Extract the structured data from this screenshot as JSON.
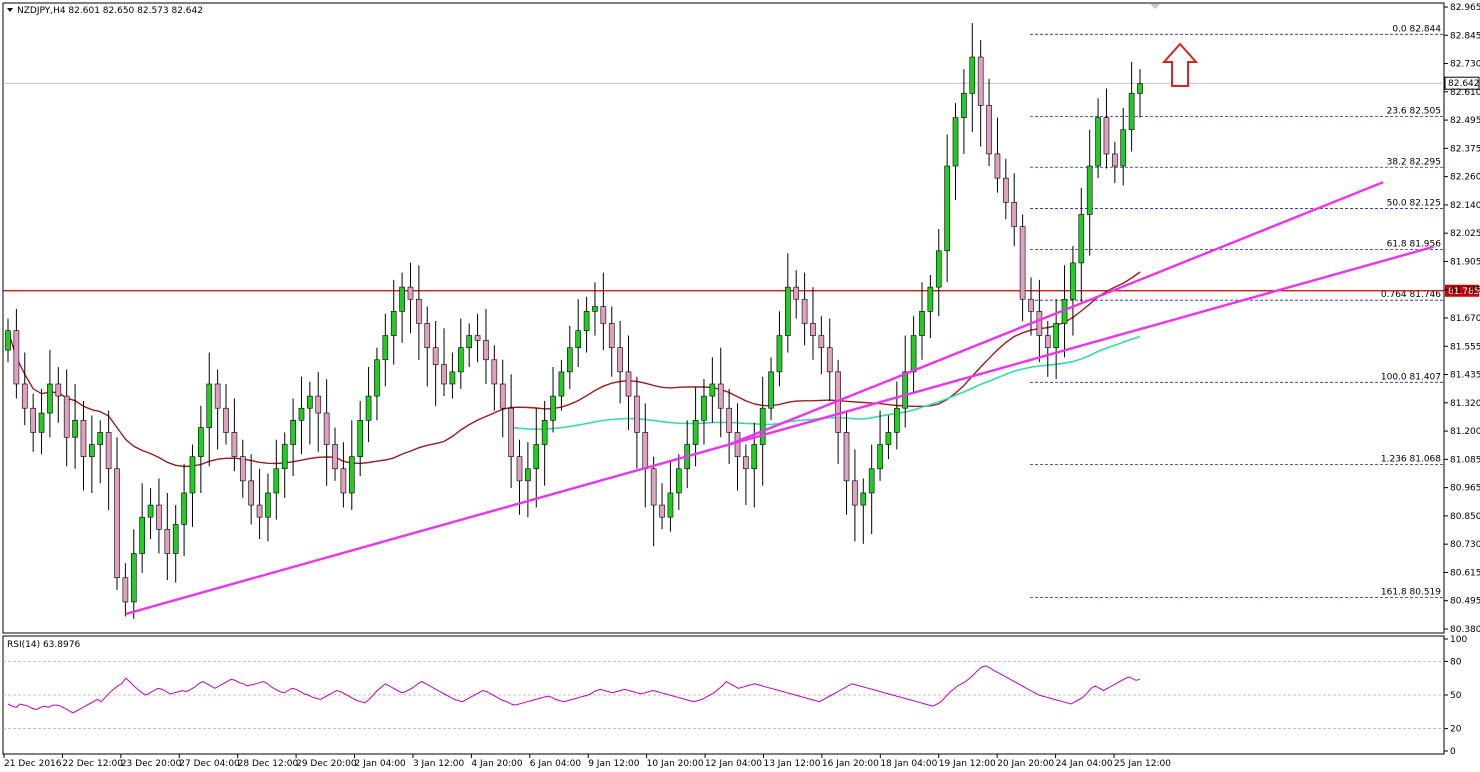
{
  "header": {
    "symbol_info": "NZDJPY,H4  82.601 82.650 82.573 82.642"
  },
  "rsi_panel": {
    "label": "RSI(14) 63.8976",
    "levels": [
      "80",
      "50",
      "20"
    ],
    "ticks": [
      "100",
      "80",
      "50",
      "20",
      "0"
    ],
    "ylim": [
      0,
      100
    ],
    "values": [
      42,
      40,
      39,
      42,
      41,
      40,
      38,
      37,
      39,
      40,
      39,
      41,
      41,
      40,
      38,
      36,
      34,
      36,
      38,
      40,
      42,
      44,
      46,
      44,
      48,
      52,
      55,
      58,
      60,
      65,
      62,
      58,
      55,
      52,
      50,
      52,
      54,
      56,
      55,
      53,
      51,
      52,
      53,
      54,
      53,
      55,
      57,
      60,
      62,
      60,
      58,
      56,
      58,
      60,
      62,
      64,
      63,
      61,
      60,
      58,
      59,
      60,
      61,
      62,
      60,
      57,
      55,
      53,
      52,
      54,
      56,
      55,
      53,
      51,
      50,
      48,
      47,
      46,
      48,
      50,
      52,
      54,
      53,
      51,
      49,
      47,
      45,
      44,
      43,
      46,
      50,
      54,
      57,
      60,
      58,
      56,
      54,
      52,
      53,
      55,
      57,
      60,
      62,
      60,
      58,
      56,
      54,
      52,
      50,
      48,
      46,
      45,
      44,
      46,
      48,
      50,
      52,
      54,
      53,
      51,
      49,
      47,
      45,
      44,
      42,
      41,
      42,
      43,
      44,
      45,
      46,
      47,
      48,
      49,
      48,
      46,
      45,
      44,
      45,
      46,
      47,
      48,
      49,
      50,
      52,
      54,
      55,
      54,
      53,
      52,
      53,
      54,
      55,
      54,
      53,
      52,
      51,
      52,
      53,
      54,
      53,
      52,
      51,
      50,
      49,
      48,
      47,
      46,
      45,
      44,
      45,
      46,
      48,
      50,
      52,
      55,
      58,
      62,
      60,
      58,
      56,
      57,
      58,
      59,
      60,
      59,
      58,
      57,
      56,
      55,
      54,
      53,
      52,
      51,
      50,
      49,
      48,
      47,
      46,
      45,
      44,
      46,
      48,
      50,
      52,
      54,
      56,
      58,
      60,
      59,
      58,
      57,
      56,
      55,
      54,
      53,
      52,
      51,
      50,
      49,
      48,
      47,
      46,
      45,
      44,
      43,
      42,
      41,
      40,
      42,
      44,
      48,
      52,
      55,
      58,
      60,
      62,
      65,
      68,
      72,
      75,
      76,
      74,
      72,
      70,
      68,
      66,
      64,
      62,
      60,
      58,
      56,
      54,
      52,
      50,
      49,
      48,
      47,
      46,
      45,
      44,
      43,
      42,
      44,
      46,
      48,
      52,
      56,
      58,
      56,
      54,
      56,
      58,
      60,
      62,
      64,
      66,
      65,
      63,
      64
    ],
    "rsi_color": "#c000c0",
    "level_color": "#b0b0b0"
  },
  "price_axis": {
    "ticks": [
      "82.965",
      "82.845",
      "82.730",
      "82.610",
      "82.495",
      "82.375",
      "82.260",
      "82.140",
      "82.025",
      "81.905",
      "81.785",
      "81.670",
      "81.555",
      "81.435",
      "81.320",
      "81.200",
      "81.085",
      "80.965",
      "80.850",
      "80.730",
      "80.615",
      "80.495",
      "80.380"
    ],
    "current_price_label": "82.642",
    "resistance_label": "81.785"
  },
  "time_axis": {
    "ticks": [
      "21 Dec 2016",
      "22 Dec 12:00",
      "23 Dec 20:00",
      "27 Dec 04:00",
      "28 Dec 12:00",
      "29 Dec 20:00",
      "2 Jan 04:00",
      "3 Jan 12:00",
      "4 Jan 20:00",
      "6 Jan 04:00",
      "9 Jan 12:00",
      "10 Jan 20:00",
      "12 Jan 04:00",
      "13 Jan 12:00",
      "16 Jan 20:00",
      "18 Jan 04:00",
      "19 Jan 12:00",
      "20 Jan 20:00",
      "24 Jan 04:00",
      "25 Jan 12:00"
    ]
  },
  "fib_levels": [
    {
      "label": "0.0 82.844",
      "value": 82.844
    },
    {
      "label": "23.6 82.505",
      "value": 82.505
    },
    {
      "label": "38.2 82.295",
      "value": 82.295
    },
    {
      "label": "50.0 82.125",
      "value": 82.125
    },
    {
      "label": "61.8 81.956",
      "value": 81.956
    },
    {
      "label": "0.764 81.746",
      "value": 81.746
    },
    {
      "label": "100.0 81.407",
      "value": 81.407
    },
    {
      "label": "1.236 81.068",
      "value": 81.068
    },
    {
      "label": "161.8 80.519",
      "value": 80.519
    }
  ],
  "colors": {
    "bull_candle": "#22cc22",
    "bear_candle": "#e0a0c0",
    "resistance_line": "#cc0000",
    "ma_fast": "#9b1c1c",
    "ma_slow": "#33ddaa",
    "trend_line": "#ee33ee",
    "fib_line": "#2222aa",
    "arrow": "#dd2222",
    "current_line": "#b0b0b0"
  },
  "chart_data": {
    "type": "candlestick",
    "title": "NZDJPY,H4",
    "ylim": [
      80.38,
      82.965
    ],
    "resistance": 81.785,
    "current": 82.642,
    "x_start": "21 Dec 2016",
    "x_end": "25 Jan 12:00",
    "closes": [
      81.62,
      81.4,
      81.3,
      81.2,
      81.28,
      81.4,
      81.35,
      81.18,
      81.25,
      81.1,
      81.15,
      81.2,
      81.05,
      80.6,
      80.5,
      80.7,
      80.85,
      80.9,
      80.8,
      80.7,
      80.82,
      80.95,
      81.1,
      81.22,
      81.4,
      81.3,
      81.2,
      81.1,
      81.0,
      80.9,
      80.85,
      80.95,
      81.05,
      81.15,
      81.25,
      81.3,
      81.35,
      81.28,
      81.15,
      81.05,
      80.95,
      81.1,
      81.25,
      81.35,
      81.5,
      81.6,
      81.7,
      81.8,
      81.75,
      81.65,
      81.55,
      81.48,
      81.4,
      81.45,
      81.55,
      81.6,
      81.58,
      81.5,
      81.4,
      81.3,
      81.1,
      81.0,
      81.05,
      81.15,
      81.25,
      81.35,
      81.45,
      81.55,
      81.62,
      81.7,
      81.72,
      81.65,
      81.55,
      81.45,
      81.35,
      81.2,
      81.05,
      80.9,
      80.85,
      80.95,
      81.05,
      81.15,
      81.25,
      81.35,
      81.4,
      81.3,
      81.2,
      81.1,
      81.05,
      81.15,
      81.3,
      81.45,
      81.6,
      81.8,
      81.75,
      81.65,
      81.6,
      81.55,
      81.45,
      81.2,
      81.0,
      80.9,
      80.95,
      81.05,
      81.15,
      81.2,
      81.3,
      81.45,
      81.6,
      81.7,
      81.8,
      81.95,
      82.3,
      82.5,
      82.6,
      82.75,
      82.55,
      82.35,
      82.25,
      82.15,
      82.05,
      81.75,
      81.7,
      81.6,
      81.55,
      81.65,
      81.75,
      81.9,
      82.1,
      82.3,
      82.5,
      82.35,
      82.3,
      82.45,
      82.6,
      82.64
    ]
  }
}
